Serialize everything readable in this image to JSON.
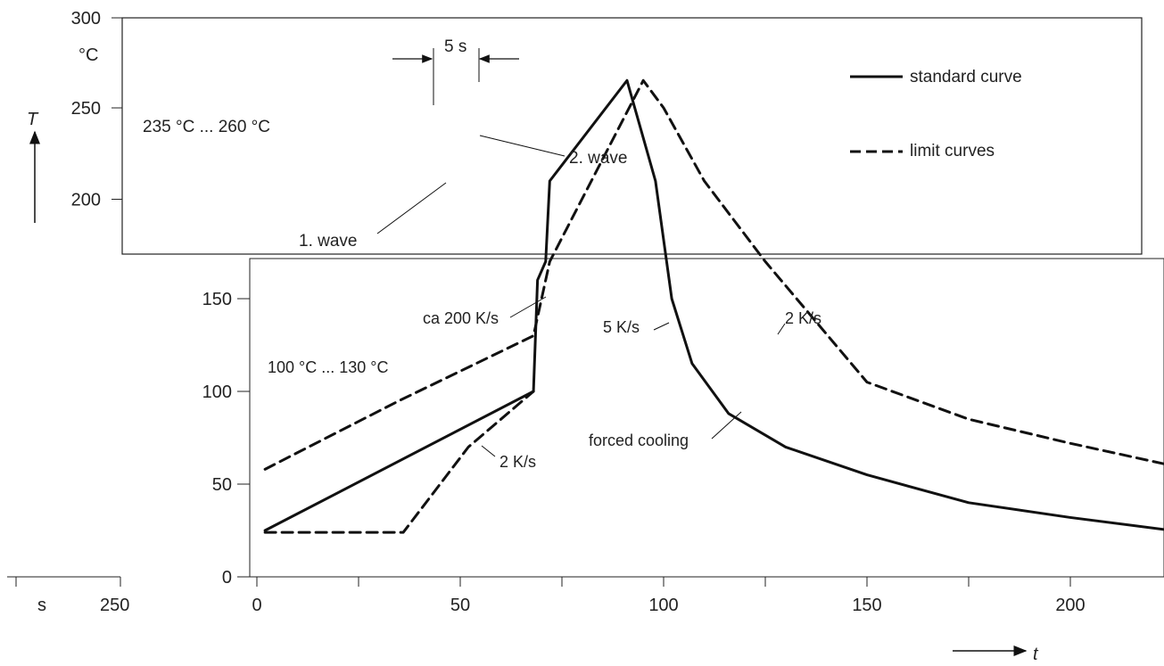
{
  "chart_data": {
    "type": "line",
    "title": "",
    "xlabel": "t",
    "ylabel": "T",
    "y_unit": "°C",
    "x_unit": "s",
    "xlim": [
      0,
      225
    ],
    "ylim_lower": [
      0,
      170
    ],
    "ylim_upper": [
      170,
      300
    ],
    "x_ticks": [
      0,
      50,
      100,
      150,
      200
    ],
    "x_tick_labels": [
      "0",
      "50",
      "100",
      "150",
      "200"
    ],
    "y_ticks_lower": [
      0,
      50,
      100,
      150
    ],
    "y_tick_labels_lower": [
      "0",
      "50",
      "100",
      "150"
    ],
    "y_ticks_upper": [
      200,
      250,
      300
    ],
    "y_tick_labels_upper": [
      "200",
      "250",
      "300"
    ],
    "extra_tick_labels": [
      "s",
      "250"
    ],
    "grid": false,
    "legend_position": "top-right",
    "legend": [
      {
        "label": "standard curve",
        "style": "solid"
      },
      {
        "label": "limit curves",
        "style": "dashed"
      }
    ],
    "series": [
      {
        "name": "standard curve",
        "style": "solid",
        "x": [
          2,
          68,
          69,
          71,
          72,
          91,
          98,
          102,
          107,
          116,
          130,
          150,
          175,
          200,
          225
        ],
        "y": [
          25,
          100,
          160,
          170,
          210,
          265,
          210,
          150,
          115,
          88,
          70,
          55,
          40,
          32,
          25
        ]
      },
      {
        "name": "limit curves",
        "style": "dashed",
        "x": [
          2,
          10,
          35,
          68,
          72,
          95,
          100,
          110,
          125,
          150,
          175,
          200,
          225
        ],
        "y": [
          58,
          67,
          95,
          130,
          170,
          265,
          250,
          210,
          170,
          105,
          85,
          72,
          60
        ]
      },
      {
        "name": "limit curves",
        "style": "dashed",
        "x": [
          2,
          36,
          52,
          68
        ],
        "y": [
          24,
          24,
          70,
          100
        ]
      }
    ],
    "annotations": [
      "5 s",
      "235 °C ... 260 °C",
      "1. wave",
      "2. wave",
      "ca 200 K/s",
      "100 °C ... 130 °C",
      "2 K/s",
      "5 K/s",
      "2 K/s",
      "forced cooling"
    ]
  }
}
